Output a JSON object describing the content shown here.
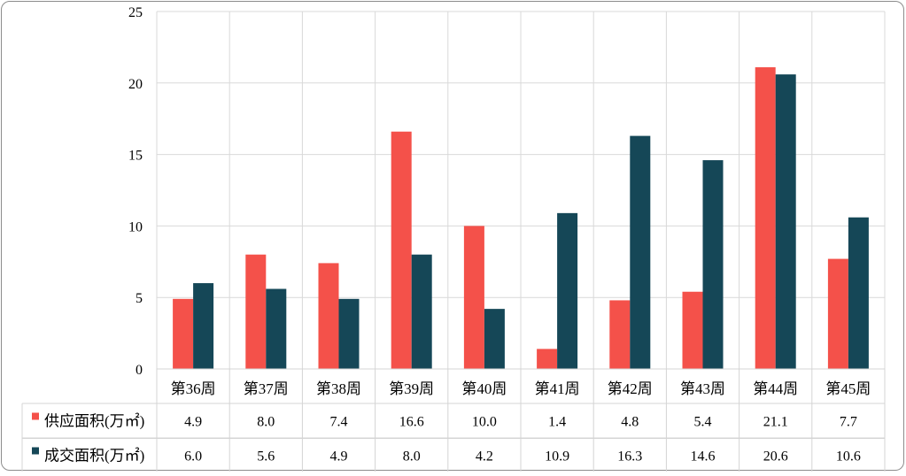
{
  "chart_data": {
    "type": "bar",
    "title": "",
    "xlabel": "",
    "ylabel": "",
    "ylim": [
      0,
      25
    ],
    "yticks": [
      0,
      5,
      10,
      15,
      20,
      25
    ],
    "grid": true,
    "legend_placement": "data-table-left",
    "categories": [
      "第36周",
      "第37周",
      "第38周",
      "第39周",
      "第40周",
      "第41周",
      "第42周",
      "第43周",
      "第44周",
      "第45周"
    ],
    "series": [
      {
        "name": "供应面积(万㎡)",
        "color": "#f4514a",
        "values": [
          4.9,
          8.0,
          7.4,
          16.6,
          10.0,
          1.4,
          4.8,
          5.4,
          21.1,
          7.7
        ],
        "labels": [
          "4.9",
          "8.0",
          "7.4",
          "16.6",
          "10.0",
          "1.4",
          "4.8",
          "5.4",
          "21.1",
          "7.7"
        ]
      },
      {
        "name": "成交面积(万㎡)",
        "color": "#154757",
        "values": [
          6.0,
          5.6,
          4.9,
          8.0,
          4.2,
          10.9,
          16.3,
          14.6,
          20.6,
          10.6
        ],
        "labels": [
          "6.0",
          "5.6",
          "4.9",
          "8.0",
          "4.2",
          "10.9",
          "16.3",
          "14.6",
          "20.6",
          "10.6"
        ]
      }
    ]
  }
}
